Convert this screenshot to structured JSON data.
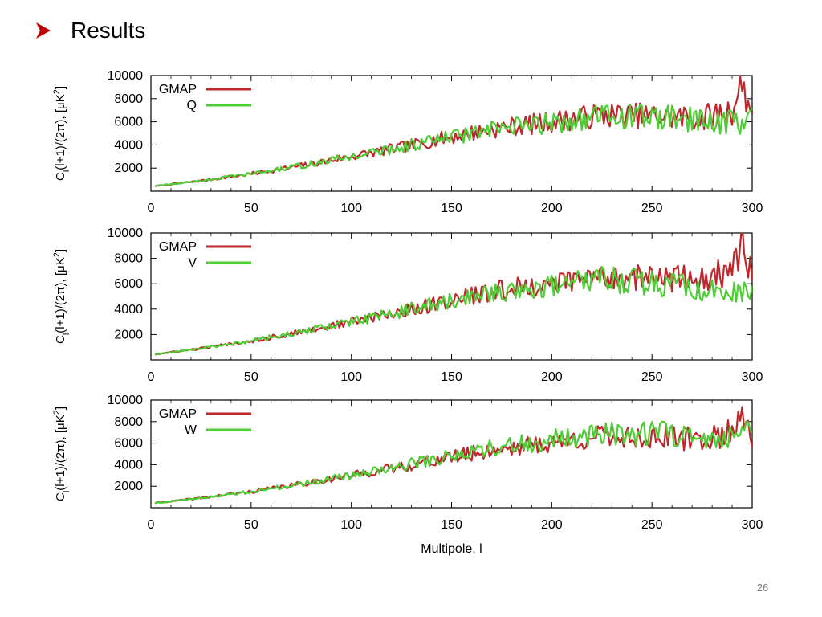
{
  "slide": {
    "heading": "Results",
    "page_number": "26",
    "bullet_color": "#c00000"
  },
  "chart_data": [
    {
      "type": "line",
      "title": "",
      "xlabel": "",
      "ylabel": "C_l(l+1)/(2π), [μK²]",
      "xlim": [
        0,
        300
      ],
      "ylim": [
        0,
        10000
      ],
      "xticks": [
        0,
        50,
        100,
        150,
        200,
        250,
        300
      ],
      "yticks": [
        2000,
        4000,
        6000,
        8000,
        10000
      ],
      "legend_position": "top-left",
      "series": [
        {
          "name": "GMAP",
          "color": "#c0272d",
          "x": [
            0,
            25,
            50,
            75,
            100,
            125,
            150,
            175,
            200,
            225,
            250,
            275,
            290,
            295,
            300
          ],
          "values": [
            400,
            900,
            1500,
            2200,
            3000,
            3800,
            4700,
            5500,
            6000,
            6600,
            6500,
            6300,
            7000,
            9300,
            6500
          ]
        },
        {
          "name": "Q",
          "color": "#4ccd34",
          "x": [
            0,
            25,
            50,
            75,
            100,
            125,
            150,
            175,
            200,
            225,
            250,
            275,
            290,
            295,
            300
          ],
          "values": [
            400,
            900,
            1500,
            2200,
            3000,
            3800,
            4700,
            5400,
            5900,
            6500,
            6400,
            6100,
            6000,
            6100,
            6100
          ]
        }
      ]
    },
    {
      "type": "line",
      "title": "",
      "xlabel": "",
      "ylabel": "C_l(l+1)/(2π), [μK²]",
      "xlim": [
        0,
        300
      ],
      "ylim": [
        0,
        10000
      ],
      "xticks": [
        0,
        50,
        100,
        150,
        200,
        250,
        300
      ],
      "yticks": [
        2000,
        4000,
        6000,
        8000,
        10000
      ],
      "legend_position": "top-left",
      "series": [
        {
          "name": "GMAP",
          "color": "#c0272d",
          "x": [
            0,
            25,
            50,
            75,
            100,
            125,
            150,
            175,
            200,
            225,
            250,
            275,
            290,
            295,
            300
          ],
          "values": [
            400,
            900,
            1500,
            2200,
            3000,
            3800,
            4700,
            5500,
            6000,
            6600,
            6500,
            6300,
            7000,
            9300,
            6500
          ]
        },
        {
          "name": "V",
          "color": "#4ccd34",
          "x": [
            0,
            25,
            50,
            75,
            100,
            125,
            150,
            175,
            200,
            225,
            250,
            275,
            290,
            295,
            300
          ],
          "values": [
            400,
            900,
            1500,
            2200,
            3000,
            3800,
            4700,
            5400,
            5900,
            6300,
            6100,
            5600,
            5200,
            5300,
            5300
          ]
        }
      ]
    },
    {
      "type": "line",
      "title": "",
      "xlabel": "Multipole, l",
      "ylabel": "C_l(l+1)/(2π), [μK²]",
      "xlim": [
        0,
        300
      ],
      "ylim": [
        0,
        10000
      ],
      "xticks": [
        0,
        50,
        100,
        150,
        200,
        250,
        300
      ],
      "yticks": [
        2000,
        4000,
        6000,
        8000,
        10000
      ],
      "legend_position": "top-left",
      "series": [
        {
          "name": "GMAP",
          "color": "#c0272d",
          "x": [
            0,
            25,
            50,
            75,
            100,
            125,
            150,
            175,
            200,
            225,
            250,
            275,
            290,
            295,
            300
          ],
          "values": [
            400,
            900,
            1500,
            2200,
            3000,
            3800,
            4700,
            5500,
            6000,
            6600,
            6500,
            6300,
            7000,
            9300,
            6500
          ]
        },
        {
          "name": "W",
          "color": "#4ccd34",
          "x": [
            0,
            25,
            50,
            75,
            100,
            125,
            150,
            175,
            200,
            225,
            250,
            275,
            290,
            295,
            300
          ],
          "values": [
            400,
            900,
            1500,
            2200,
            3000,
            3900,
            4800,
            5700,
            6300,
            6900,
            6900,
            6800,
            6800,
            6900,
            6900
          ]
        }
      ]
    }
  ]
}
